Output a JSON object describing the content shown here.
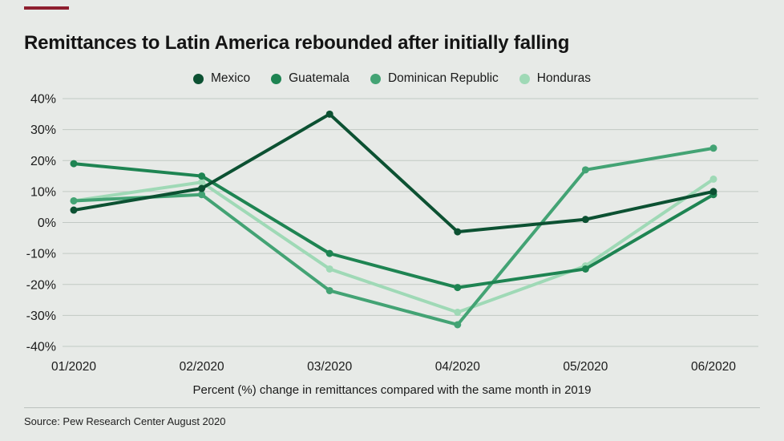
{
  "page": {
    "accent_color": "#8e1f2f",
    "background_color": "#e7eae7"
  },
  "chart_data": {
    "type": "line",
    "title": "Remittances to Latin America rebounded after initially falling",
    "caption": "Percent (%) change in remittances compared with the same month in 2019",
    "categories": [
      "01/2020",
      "02/2020",
      "03/2020",
      "04/2020",
      "05/2020",
      "06/2020"
    ],
    "series": [
      {
        "name": "Mexico",
        "color": "#0c5132",
        "values": [
          4,
          11,
          35,
          -3,
          1,
          10
        ]
      },
      {
        "name": "Guatemala",
        "color": "#1e8452",
        "values": [
          19,
          15,
          -10,
          -21,
          -15,
          9
        ]
      },
      {
        "name": "Dominican Republic",
        "color": "#43a374",
        "values": [
          7,
          9,
          -22,
          -33,
          17,
          24
        ]
      },
      {
        "name": "Honduras",
        "color": "#9fd9b6",
        "values": [
          7,
          13,
          -15,
          -29,
          -14,
          14
        ]
      }
    ],
    "y_ticks": [
      40,
      30,
      20,
      10,
      0,
      -10,
      -20,
      -30,
      -40
    ],
    "y_tick_suffix": "%",
    "ylim": [
      -40,
      40
    ],
    "grid": true,
    "grid_color": "#c2c9c4",
    "legend_position": "top"
  },
  "footer": {
    "source": "Source: Pew Research Center August 2020"
  }
}
